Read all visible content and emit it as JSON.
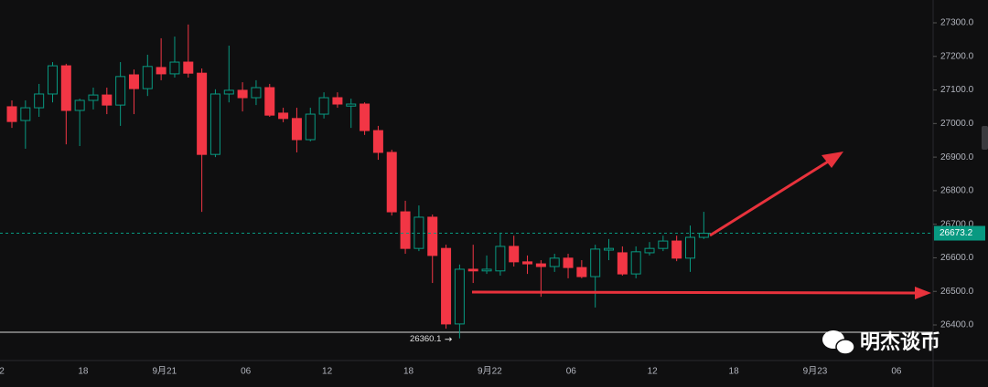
{
  "chart_data": {
    "type": "candlestick",
    "up_color": "#089981",
    "down_color": "#f23645",
    "open": [
      27050,
      27009,
      27047,
      27088,
      27172,
      27039,
      27069,
      27085,
      27055,
      27145,
      27104,
      27167,
      27148,
      27183,
      27150,
      26908,
      27088,
      27099,
      27077,
      27107,
      27031,
      27015,
      26952,
      27028,
      27077,
      27052,
      27058,
      26979,
      26914,
      26737,
      26628,
      26721,
      26628,
      26403,
      26566,
      26561,
      26561,
      26634,
      26588,
      26582,
      26574,
      26599,
      26571,
      26544,
      26623,
      26615,
      26552,
      26615,
      26628,
      26650,
      26599,
      26661
    ],
    "high": [
      27069,
      27069,
      27118,
      27183,
      27178,
      27074,
      27107,
      27107,
      27183,
      27161,
      27205,
      27254,
      27259,
      27295,
      27164,
      27102,
      27232,
      27123,
      27129,
      27118,
      27047,
      27047,
      27047,
      27093,
      27093,
      27074,
      27063,
      26993,
      26922,
      26770,
      26756,
      26729,
      26639,
      26580,
      26639,
      26607,
      26675,
      26666,
      26607,
      26593,
      26612,
      26612,
      26593,
      26639,
      26656,
      26634,
      26634,
      26647,
      26666,
      26666,
      26696,
      26737
    ],
    "low": [
      26987,
      26925,
      27020,
      27063,
      26938,
      26933,
      27042,
      27028,
      26993,
      27028,
      27082,
      27129,
      27137,
      27137,
      26737,
      26900,
      27063,
      27036,
      27055,
      27020,
      27004,
      26914,
      26947,
      27015,
      27047,
      26987,
      26966,
      26892,
      26726,
      26612,
      26620,
      26525,
      26389,
      26360.1,
      26525,
      26552,
      26547,
      26574,
      26552,
      26484,
      26558,
      26539,
      26539,
      26452,
      26593,
      26547,
      26539,
      26607,
      26620,
      26590,
      26558,
      26656
    ],
    "close": [
      27006,
      27047,
      27088,
      27172,
      27039,
      27069,
      27085,
      27055,
      27140,
      27104,
      27170,
      27148,
      27183,
      27150,
      26908,
      27088,
      27099,
      27077,
      27107,
      27025,
      27015,
      26952,
      27028,
      27077,
      27058,
      27058,
      26979,
      26914,
      26737,
      26628,
      26721,
      26607,
      26403,
      26566,
      26561,
      26566,
      26634,
      26588,
      26582,
      26574,
      26599,
      26571,
      26544,
      26626,
      26628,
      26552,
      26618,
      26628,
      26650,
      26599,
      26661,
      26673.2
    ],
    "x_labels": [
      "2",
      "18",
      "9月21",
      "06",
      "12",
      "18",
      "9月22",
      "06",
      "12",
      "18",
      "9月23",
      "06"
    ],
    "ylim": [
      26294,
      27368
    ],
    "yticks": [
      {
        "value": 26400,
        "label": "26400.0"
      },
      {
        "value": 26500,
        "label": "26500.0"
      },
      {
        "value": 26600,
        "label": "26600.0"
      },
      {
        "value": 26700,
        "label": "26700.0"
      },
      {
        "value": 26800,
        "label": "26800.0"
      },
      {
        "value": 26900,
        "label": "26900.0"
      },
      {
        "value": 27000,
        "label": "27000.0"
      },
      {
        "value": 27100,
        "label": "27100.0"
      },
      {
        "value": 27200,
        "label": "27200.0"
      },
      {
        "value": 27300,
        "label": "27300.0"
      }
    ],
    "watermark": "明杰谈币"
  }
}
